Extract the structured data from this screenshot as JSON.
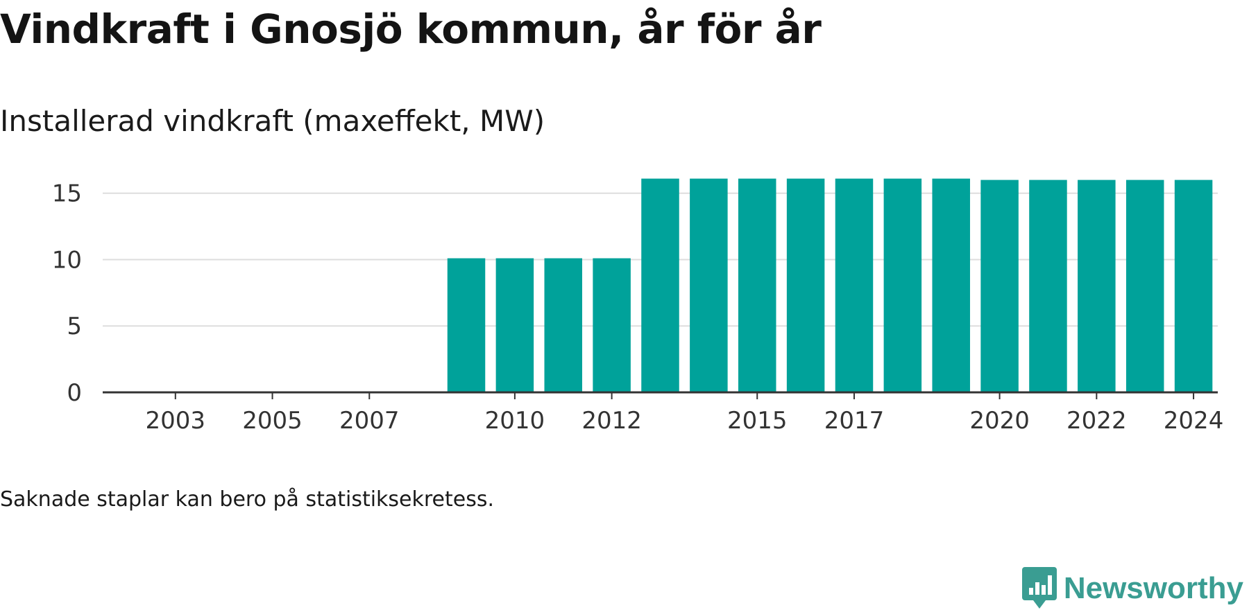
{
  "title": "Vindkraft i Gnosjö kommun, år för år",
  "subtitle": "Installerad vindkraft (maxeffekt, MW)",
  "note": "Saknade staplar kan bero på statistiksekretess.",
  "brand": {
    "name": "Newsworthy",
    "icon": "newsworthy-logo-icon",
    "color": "#3a9d92"
  },
  "chart_data": {
    "type": "bar",
    "categories": [
      "2002",
      "2003",
      "2004",
      "2005",
      "2006",
      "2007",
      "2008",
      "2009",
      "2010",
      "2011",
      "2012",
      "2013",
      "2014",
      "2015",
      "2016",
      "2017",
      "2018",
      "2019",
      "2020",
      "2021",
      "2022",
      "2023",
      "2024"
    ],
    "values": [
      0,
      0,
      0,
      0,
      0,
      0,
      0,
      10.1,
      10.1,
      10.1,
      10.1,
      16.1,
      16.1,
      16.1,
      16.1,
      16.1,
      16.1,
      16.1,
      16.0,
      16.0,
      16.0,
      16.0,
      16.0
    ],
    "x_tick_labels": [
      "2003",
      "2005",
      "2007",
      "2010",
      "2012",
      "2015",
      "2017",
      "2020",
      "2022",
      "2024"
    ],
    "y_ticks": [
      0,
      5,
      10,
      15
    ],
    "ylim": [
      0,
      16.5
    ],
    "xlabel": "",
    "ylabel": "",
    "bar_color": "#00a29a",
    "grid": true
  }
}
